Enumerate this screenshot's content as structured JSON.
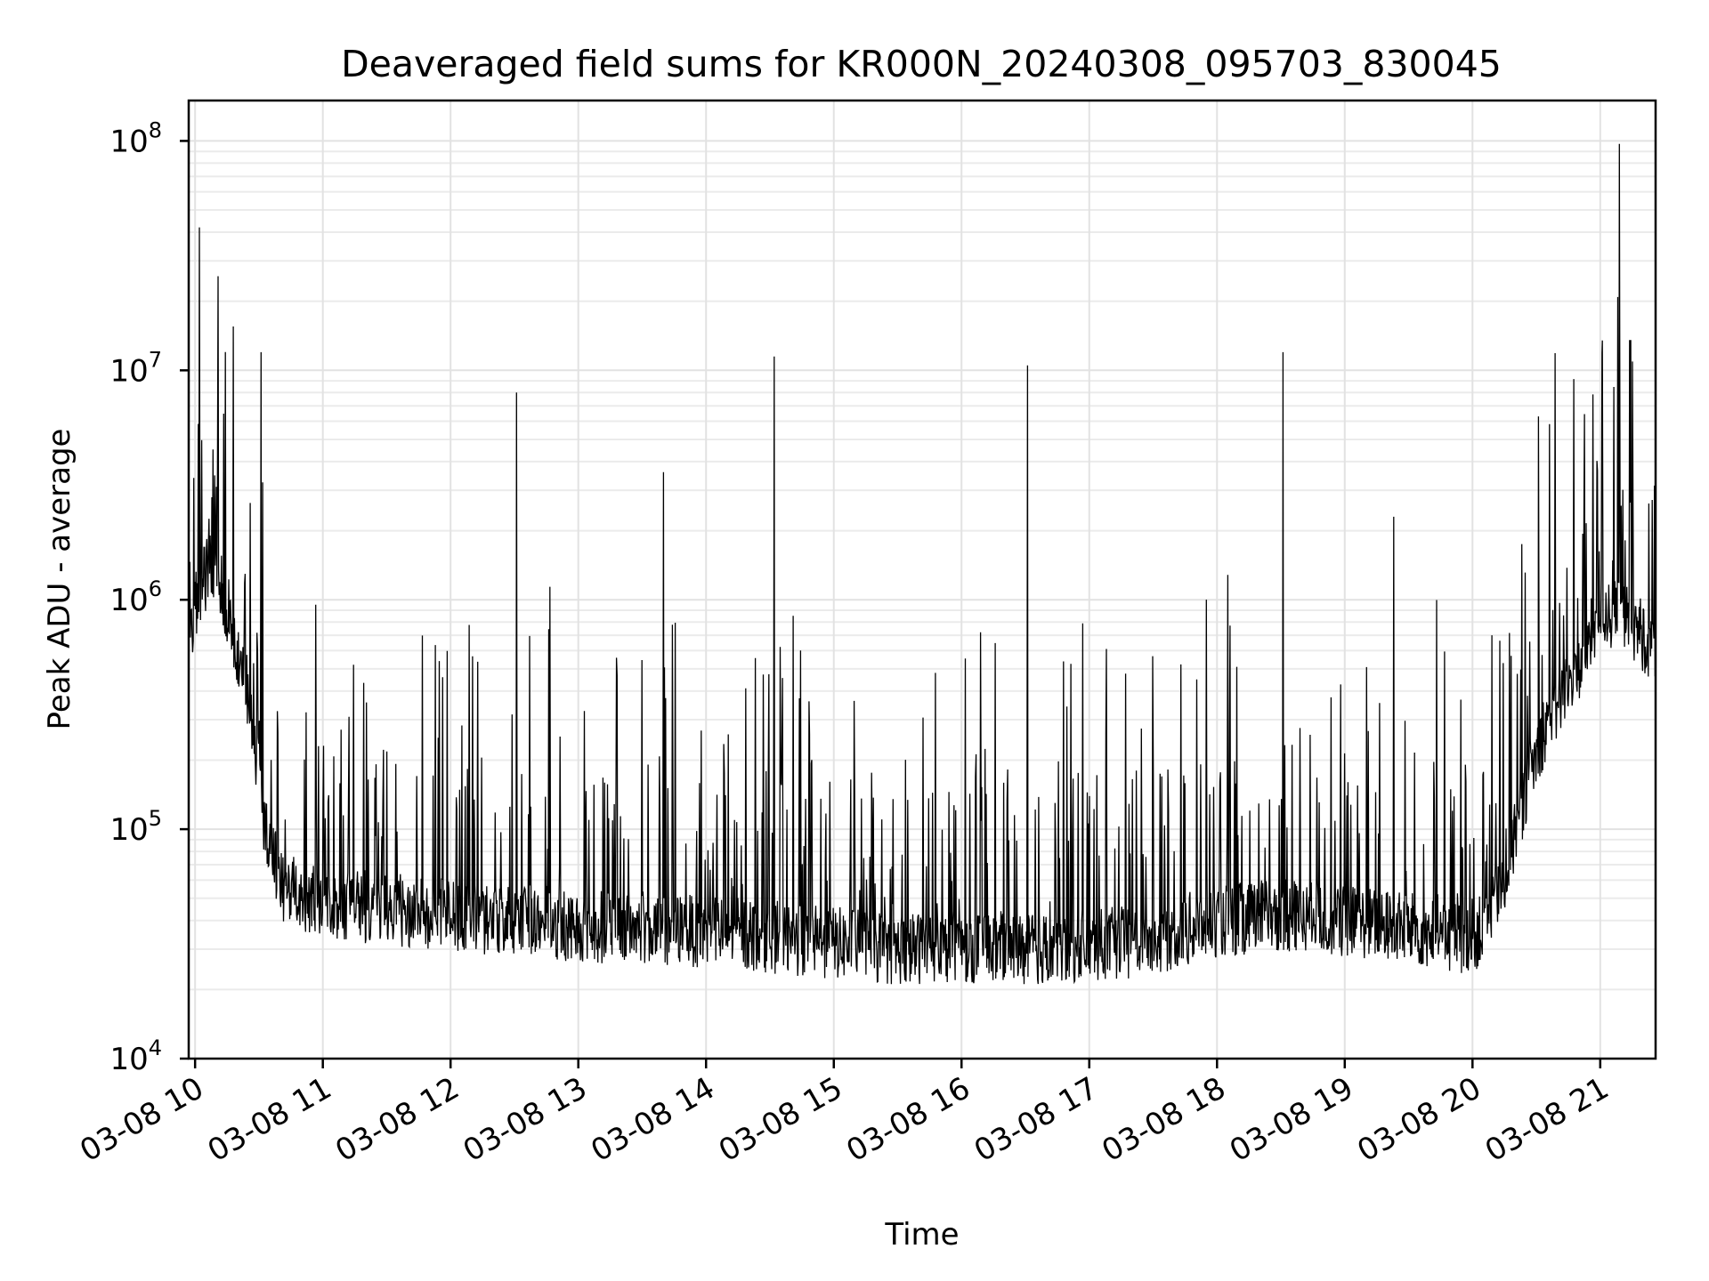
{
  "chart_data": {
    "type": "line",
    "title": "Deaveraged field sums for KR000N_20240308_095703_830045",
    "xlabel": "Time",
    "ylabel": "Peak ADU - average",
    "yscale": "log",
    "ylim": [
      10000,
      150000000
    ],
    "xlim": [
      "2024-03-08 09:57",
      "2024-03-08 21:26"
    ],
    "x_ticks": [
      "03-08 10",
      "03-08 11",
      "03-08 12",
      "03-08 13",
      "03-08 14",
      "03-08 15",
      "03-08 16",
      "03-08 17",
      "03-08 18",
      "03-08 19",
      "03-08 20",
      "03-08 21"
    ],
    "y_ticks": [
      {
        "value": 10000,
        "base": "10",
        "exp": "4"
      },
      {
        "value": 100000,
        "base": "10",
        "exp": "5"
      },
      {
        "value": 1000000,
        "base": "10",
        "exp": "6"
      },
      {
        "value": 10000000,
        "base": "10",
        "exp": "7"
      },
      {
        "value": 100000000,
        "base": "10",
        "exp": "8"
      }
    ],
    "grid": true,
    "series_color": "#000000",
    "series": [
      {
        "x": [
          "2024-03-08 09:57",
          "2024-03-08 10:03",
          "2024-03-08 10:10",
          "2024-03-08 10:18",
          "2024-03-08 10:26",
          "2024-03-08 10:32",
          "2024-03-08 10:40",
          "2024-03-08 11:00",
          "2024-03-08 11:30",
          "2024-03-08 12:00",
          "2024-03-08 12:30",
          "2024-03-08 13:00",
          "2024-03-08 13:30",
          "2024-03-08 14:00",
          "2024-03-08 14:30",
          "2024-03-08 15:00",
          "2024-03-08 15:30",
          "2024-03-08 16:00",
          "2024-03-08 16:30",
          "2024-03-08 17:00",
          "2024-03-08 17:30",
          "2024-03-08 18:00",
          "2024-03-08 18:30",
          "2024-03-08 19:00",
          "2024-03-08 19:30",
          "2024-03-08 19:55",
          "2024-03-08 20:05",
          "2024-03-08 20:15",
          "2024-03-08 20:25",
          "2024-03-08 20:35",
          "2024-03-08 20:50",
          "2024-03-08 21:00",
          "2024-03-08 21:15",
          "2024-03-08 21:26"
        ],
        "values": [
          700000,
          1200000,
          1500000,
          700000,
          350000,
          120000,
          55000,
          48000,
          45000,
          42000,
          40000,
          38000,
          37000,
          36000,
          34000,
          32000,
          30000,
          31000,
          30000,
          31000,
          33000,
          40000,
          42000,
          40000,
          37000,
          33000,
          36000,
          60000,
          150000,
          300000,
          500000,
          900000,
          800000,
          600000
        ]
      }
    ],
    "spikes": [
      {
        "x": "2024-03-08 10:02",
        "value": 42000000
      },
      {
        "x": "2024-03-08 10:31",
        "value": 12000000
      },
      {
        "x": "2024-03-08 12:31",
        "value": 8000000
      },
      {
        "x": "2024-03-08 13:40",
        "value": 3600000
      },
      {
        "x": "2024-03-08 14:32",
        "value": 11500000
      },
      {
        "x": "2024-03-08 16:31",
        "value": 10500000
      },
      {
        "x": "2024-03-08 18:31",
        "value": 12000000
      },
      {
        "x": "2024-03-08 19:23",
        "value": 2300000
      },
      {
        "x": "2024-03-08 20:31",
        "value": 6300000
      },
      {
        "x": "2024-03-08 21:01",
        "value": 13500000
      },
      {
        "x": "2024-03-08 21:09",
        "value": 97000000
      }
    ]
  }
}
